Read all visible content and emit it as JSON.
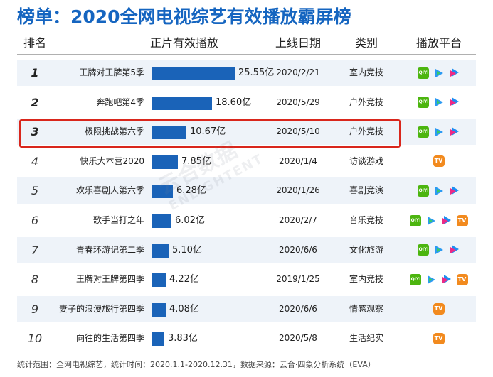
{
  "title": "榜单：2020全网电视综艺有效播放霸屏榜",
  "headers": {
    "rank": "排名",
    "plays": "正片有效播放",
    "date": "上线日期",
    "category": "类别",
    "platforms": "播放平台"
  },
  "colors": {
    "title": "#1565c0",
    "bar": "#1a63b8",
    "highlight": "#d9261c",
    "row_band": "#eef3f9"
  },
  "watermark": {
    "line1": "云合数据",
    "line2": "ENLIGHTENT"
  },
  "footer": "统计范围：全网电视综艺，统计时间：2020.1.1-2020.12.31，数据来源：云合·四象分析系统（EVA）",
  "highlighted_rank": "3",
  "platform_icons": {
    "iqiyi": "iqiyi-logo-icon",
    "tencent": "tencent-video-logo-icon",
    "youku": "youku-logo-icon",
    "mango": "mango-tv-logo-icon"
  },
  "chart_data": {
    "type": "bar",
    "orientation": "horizontal",
    "title": "榜单：2020全网电视综艺有效播放霸屏榜",
    "unit": "亿",
    "xlim": [
      0,
      25.55
    ],
    "rows": [
      {
        "rank": "1",
        "name": "王牌对王牌第5季",
        "value": 25.55,
        "label": "25.55亿",
        "date": "2020/2/21",
        "category": "室内竞技",
        "platforms": [
          "iqiyi",
          "tencent",
          "youku"
        ]
      },
      {
        "rank": "2",
        "name": "奔跑吧第4季",
        "value": 18.6,
        "label": "18.60亿",
        "date": "2020/5/29",
        "category": "户外竞技",
        "platforms": [
          "iqiyi",
          "tencent",
          "youku"
        ]
      },
      {
        "rank": "3",
        "name": "极限挑战第六季",
        "value": 10.67,
        "label": "10.67亿",
        "date": "2020/5/10",
        "category": "户外竞技",
        "platforms": [
          "iqiyi",
          "tencent",
          "youku"
        ]
      },
      {
        "rank": "4",
        "name": "快乐大本营2020",
        "value": 7.85,
        "label": "7.85亿",
        "date": "2020/1/4",
        "category": "访谈游戏",
        "platforms": [
          "mango"
        ]
      },
      {
        "rank": "5",
        "name": "欢乐喜剧人第六季",
        "value": 6.28,
        "label": "6.28亿",
        "date": "2020/1/26",
        "category": "喜剧竞演",
        "platforms": [
          "iqiyi",
          "tencent",
          "youku"
        ]
      },
      {
        "rank": "6",
        "name": "歌手当打之年",
        "value": 6.02,
        "label": "6.02亿",
        "date": "2020/2/7",
        "category": "音乐竞技",
        "platforms": [
          "iqiyi",
          "tencent",
          "youku",
          "mango"
        ]
      },
      {
        "rank": "7",
        "name": "青春环游记第二季",
        "value": 5.1,
        "label": "5.10亿",
        "date": "2020/6/6",
        "category": "文化旅游",
        "platforms": [
          "iqiyi",
          "tencent",
          "youku"
        ]
      },
      {
        "rank": "8",
        "name": "王牌对王牌第四季",
        "value": 4.22,
        "label": "4.22亿",
        "date": "2019/1/25",
        "category": "室内竞技",
        "platforms": [
          "iqiyi",
          "tencent",
          "youku",
          "mango"
        ]
      },
      {
        "rank": "9",
        "name": "妻子的浪漫旅行第四季",
        "value": 4.08,
        "label": "4.08亿",
        "date": "2020/6/6",
        "category": "情感观察",
        "platforms": [
          "mango"
        ]
      },
      {
        "rank": "10",
        "name": "向往的生活第四季",
        "value": 3.83,
        "label": "3.83亿",
        "date": "2020/5/8",
        "category": "生活纪实",
        "platforms": [
          "mango"
        ]
      }
    ]
  }
}
